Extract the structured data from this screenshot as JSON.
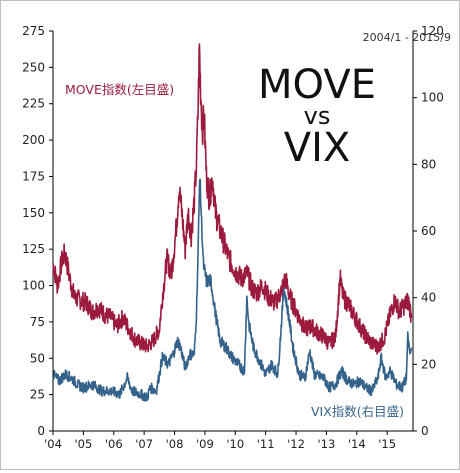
{
  "chart_data": {
    "type": "line",
    "title_lines": [
      "MOVE",
      "vs",
      "VIX"
    ],
    "period": "2004/1 - 2015/9",
    "x_ticks": [
      "'04",
      "'05",
      "'06",
      "'07",
      "'08",
      "'09",
      "'10",
      "'11",
      "'12",
      "'13",
      "'14",
      "'15"
    ],
    "x_range": [
      2004.0,
      2015.85
    ],
    "left_axis": {
      "range": [
        0,
        275
      ],
      "ticks": [
        0,
        25,
        50,
        75,
        100,
        125,
        150,
        175,
        200,
        225,
        250,
        275
      ]
    },
    "right_axis": {
      "range": [
        0,
        120
      ],
      "ticks": [
        0,
        20,
        40,
        60,
        80,
        100,
        120
      ]
    },
    "grid": false,
    "series": [
      {
        "name": "MOVE指数(左目盛)",
        "axis": "left",
        "color": "#9b1a3e",
        "points": [
          [
            2004.0,
            115
          ],
          [
            2004.15,
            100
          ],
          [
            2004.3,
            118
          ],
          [
            2004.4,
            122
          ],
          [
            2004.55,
            105
          ],
          [
            2004.7,
            92
          ],
          [
            2004.9,
            90
          ],
          [
            2005.1,
            88
          ],
          [
            2005.3,
            82
          ],
          [
            2005.5,
            85
          ],
          [
            2005.7,
            80
          ],
          [
            2005.9,
            78
          ],
          [
            2006.1,
            72
          ],
          [
            2006.3,
            78
          ],
          [
            2006.5,
            70
          ],
          [
            2006.7,
            63
          ],
          [
            2006.9,
            60
          ],
          [
            2007.1,
            58
          ],
          [
            2007.3,
            62
          ],
          [
            2007.5,
            70
          ],
          [
            2007.6,
            92
          ],
          [
            2007.75,
            118
          ],
          [
            2007.9,
            108
          ],
          [
            2008.05,
            138
          ],
          [
            2008.15,
            168
          ],
          [
            2008.25,
            148
          ],
          [
            2008.35,
            125
          ],
          [
            2008.45,
            150
          ],
          [
            2008.55,
            135
          ],
          [
            2008.65,
            158
          ],
          [
            2008.72,
            182
          ],
          [
            2008.78,
            225
          ],
          [
            2008.82,
            264
          ],
          [
            2008.86,
            235
          ],
          [
            2008.92,
            205
          ],
          [
            2008.97,
            220
          ],
          [
            2009.05,
            175
          ],
          [
            2009.15,
            160
          ],
          [
            2009.25,
            175
          ],
          [
            2009.35,
            150
          ],
          [
            2009.5,
            138
          ],
          [
            2009.65,
            128
          ],
          [
            2009.8,
            118
          ],
          [
            2010.0,
            110
          ],
          [
            2010.2,
            105
          ],
          [
            2010.4,
            108
          ],
          [
            2010.55,
            98
          ],
          [
            2010.7,
            95
          ],
          [
            2010.9,
            100
          ],
          [
            2011.1,
            92
          ],
          [
            2011.3,
            88
          ],
          [
            2011.5,
            95
          ],
          [
            2011.65,
            105
          ],
          [
            2011.8,
            92
          ],
          [
            2011.95,
            85
          ],
          [
            2012.1,
            78
          ],
          [
            2012.3,
            70
          ],
          [
            2012.5,
            72
          ],
          [
            2012.7,
            68
          ],
          [
            2012.9,
            65
          ],
          [
            2013.1,
            60
          ],
          [
            2013.3,
            65
          ],
          [
            2013.45,
            105
          ],
          [
            2013.55,
            92
          ],
          [
            2013.7,
            88
          ],
          [
            2013.9,
            80
          ],
          [
            2014.1,
            72
          ],
          [
            2014.3,
            65
          ],
          [
            2014.5,
            60
          ],
          [
            2014.7,
            58
          ],
          [
            2014.9,
            64
          ],
          [
            2015.1,
            80
          ],
          [
            2015.25,
            90
          ],
          [
            2015.4,
            82
          ],
          [
            2015.55,
            86
          ],
          [
            2015.7,
            90
          ],
          [
            2015.8,
            78
          ]
        ]
      },
      {
        "name": "VIX指数(右目盛)",
        "axis": "right",
        "color": "#35628a",
        "points": [
          [
            2004.0,
            17
          ],
          [
            2004.2,
            15
          ],
          [
            2004.4,
            17
          ],
          [
            2004.6,
            16
          ],
          [
            2004.8,
            14
          ],
          [
            2005.0,
            13
          ],
          [
            2005.3,
            14
          ],
          [
            2005.6,
            12
          ],
          [
            2005.9,
            12
          ],
          [
            2006.2,
            11
          ],
          [
            2006.45,
            16
          ],
          [
            2006.6,
            12
          ],
          [
            2006.9,
            11
          ],
          [
            2007.1,
            10
          ],
          [
            2007.2,
            13
          ],
          [
            2007.4,
            12
          ],
          [
            2007.6,
            22
          ],
          [
            2007.8,
            20
          ],
          [
            2007.95,
            23
          ],
          [
            2008.1,
            27
          ],
          [
            2008.2,
            25
          ],
          [
            2008.35,
            19
          ],
          [
            2008.5,
            23
          ],
          [
            2008.65,
            23
          ],
          [
            2008.72,
            35
          ],
          [
            2008.78,
            55
          ],
          [
            2008.83,
            78
          ],
          [
            2008.88,
            65
          ],
          [
            2008.95,
            50
          ],
          [
            2009.05,
            45
          ],
          [
            2009.2,
            45
          ],
          [
            2009.35,
            35
          ],
          [
            2009.5,
            27
          ],
          [
            2009.7,
            25
          ],
          [
            2009.9,
            22
          ],
          [
            2010.1,
            20
          ],
          [
            2010.3,
            18
          ],
          [
            2010.38,
            40
          ],
          [
            2010.45,
            32
          ],
          [
            2010.6,
            25
          ],
          [
            2010.8,
            21
          ],
          [
            2011.0,
            17
          ],
          [
            2011.2,
            20
          ],
          [
            2011.4,
            17
          ],
          [
            2011.6,
            43
          ],
          [
            2011.75,
            35
          ],
          [
            2011.9,
            25
          ],
          [
            2012.1,
            17
          ],
          [
            2012.3,
            16
          ],
          [
            2012.45,
            24
          ],
          [
            2012.6,
            17
          ],
          [
            2012.9,
            16
          ],
          [
            2013.1,
            13
          ],
          [
            2013.3,
            14
          ],
          [
            2013.5,
            18
          ],
          [
            2013.7,
            15
          ],
          [
            2013.9,
            14
          ],
          [
            2014.1,
            15
          ],
          [
            2014.3,
            13
          ],
          [
            2014.5,
            12
          ],
          [
            2014.7,
            16
          ],
          [
            2014.8,
            22
          ],
          [
            2014.95,
            16
          ],
          [
            2015.1,
            18
          ],
          [
            2015.3,
            14
          ],
          [
            2015.5,
            13
          ],
          [
            2015.63,
            16
          ],
          [
            2015.68,
            28
          ],
          [
            2015.75,
            23
          ],
          [
            2015.8,
            25
          ]
        ]
      }
    ]
  }
}
